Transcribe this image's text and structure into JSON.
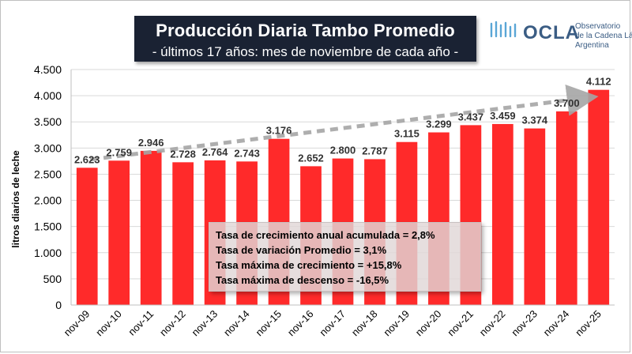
{
  "header": {
    "title": "Producción Diaria Tambo Promedio",
    "subtitle": "- últimos 17 años: mes de noviembre de cada año -"
  },
  "logo": {
    "name": "OCLA",
    "line1": "Observatorio",
    "line2": "de la Cadena Láctea",
    "line3": "Argentina"
  },
  "stats": {
    "line1": "Tasa de crecimiento anual acumulada = 2,8%",
    "line2": "Tasa de variación  Promedio = 3,1%",
    "line3": "Tasa máxima de crecimiento = +15,8%",
    "line4": "Tasa máxima de descenso = -16,5%"
  },
  "colors": {
    "bar": "#ff2a2a",
    "trend": "#a6a6a6",
    "header_bg": "#1a2233",
    "logo": "#3b5d84"
  },
  "chart_data": {
    "type": "bar",
    "title": "Producción Diaria Tambo Promedio",
    "subtitle": "- últimos 17 años: mes de noviembre de cada año -",
    "xlabel": "",
    "ylabel": "litros diarios de leche",
    "categories": [
      "nov-09",
      "nov-10",
      "nov-11",
      "nov-12",
      "nov-13",
      "nov-14",
      "nov-15",
      "nov-16",
      "nov-17",
      "nov-18",
      "nov-19",
      "nov-20",
      "nov-21",
      "nov-22",
      "nov-23",
      "nov-24",
      "nov-25"
    ],
    "values": [
      2623,
      2759,
      2946,
      2728,
      2764,
      2743,
      3176,
      2652,
      2800,
      2787,
      3115,
      3299,
      3437,
      3459,
      3374,
      3700,
      4112
    ],
    "value_labels": [
      "2.623",
      "2.759",
      "2.946",
      "2.728",
      "2.764",
      "2.743",
      "3.176",
      "2.652",
      "2.800",
      "2.787",
      "3.115",
      "3.299",
      "3.437",
      "3.459",
      "3.374",
      "3.700",
      "4.112"
    ],
    "ylim": [
      0,
      4500
    ],
    "yticks": [
      0,
      500,
      1000,
      1500,
      2000,
      2500,
      3000,
      3500,
      4000,
      4500
    ],
    "ytick_labels": [
      "0",
      "500",
      "1.000",
      "1.500",
      "2.000",
      "2.500",
      "3.000",
      "3.500",
      "4.000",
      "4.500"
    ],
    "grid": true,
    "trend": {
      "start_value": 2780,
      "end_value": 3950
    }
  }
}
